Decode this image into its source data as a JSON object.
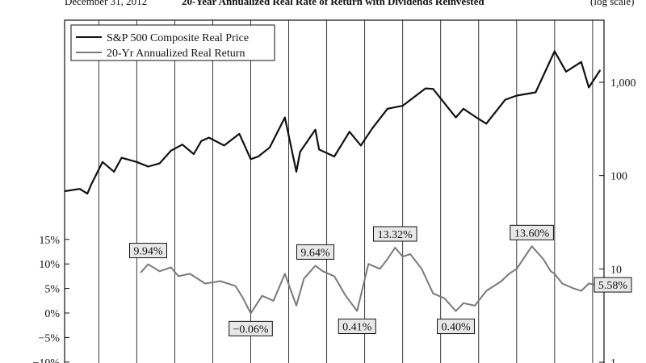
{
  "header": {
    "date": "December 31, 2012",
    "title": "20-Year Annualized Real Rate of Return with Dividends Reinvested",
    "scale_note": "(log scale)"
  },
  "chart_data": {
    "type": "line",
    "x_range": [
      1871,
      2013
    ],
    "grid": "vertical",
    "legend_position": "top-left",
    "legend": [
      {
        "label": "S&P 500 Composite Real Price",
        "color": "#111111"
      },
      {
        "label": "20-Yr Annualized Real Return",
        "color": "#7a7a7a"
      }
    ],
    "right_axis": {
      "scale": "log",
      "ticks": [
        {
          "value": 1000,
          "label": "1,000"
        },
        {
          "value": 100,
          "label": "100"
        },
        {
          "value": 10,
          "label": "10"
        },
        {
          "value": 1,
          "label": "1"
        }
      ],
      "range": [
        1,
        3000
      ]
    },
    "left_axis": {
      "ticks": [
        {
          "value": 15,
          "label": "15%"
        },
        {
          "value": 10,
          "label": "10%"
        },
        {
          "value": 5,
          "label": "5%"
        },
        {
          "value": 0,
          "label": "0%"
        },
        {
          "value": -5,
          "label": "−5%"
        },
        {
          "value": -10,
          "label": "−10%"
        }
      ]
    },
    "series": [
      {
        "name": "S&P 500 Composite Real Price",
        "color": "#111111",
        "axis": "right",
        "x": [
          1871,
          1875,
          1877,
          1878,
          1881,
          1884,
          1886,
          1890,
          1893,
          1896,
          1899,
          1902,
          1905,
          1907,
          1909,
          1913,
          1917,
          1920,
          1922,
          1925,
          1929,
          1932,
          1933,
          1937,
          1938,
          1942,
          1946,
          1949,
          1952,
          1956,
          1960,
          1966,
          1968,
          1974,
          1976,
          1979,
          1982,
          1987,
          1990,
          1995,
          2000,
          2003,
          2007,
          2009,
          2012
        ],
        "y": [
          68,
          72,
          64,
          80,
          140,
          110,
          155,
          140,
          125,
          135,
          185,
          215,
          170,
          235,
          255,
          210,
          280,
          150,
          160,
          200,
          420,
          110,
          180,
          310,
          190,
          160,
          295,
          210,
          320,
          520,
          560,
          860,
          850,
          420,
          520,
          430,
          360,
          650,
          720,
          780,
          2150,
          1300,
          1650,
          880,
          1350
        ]
      },
      {
        "name": "20-Yr Annualized Real Return",
        "color": "#7a7a7a",
        "axis": "left",
        "x": [
          1891,
          1893,
          1896,
          1899,
          1901,
          1904,
          1908,
          1912,
          1916,
          1918,
          1920,
          1923,
          1926,
          1929,
          1932,
          1934,
          1937,
          1939,
          1942,
          1945,
          1948,
          1951,
          1954,
          1956,
          1958,
          1960,
          1962,
          1965,
          1968,
          1971,
          1974,
          1976,
          1979,
          1982,
          1986,
          1988,
          1990,
          1994,
          1997,
          1999,
          2000,
          2002,
          2005,
          2007,
          2009,
          2012
        ],
        "y": [
          8.2,
          9.94,
          8.5,
          9.3,
          7.5,
          8.0,
          6.0,
          6.5,
          5.5,
          3.0,
          -0.06,
          3.5,
          2.5,
          8.0,
          1.5,
          7.0,
          9.64,
          8.5,
          7.5,
          3.5,
          0.41,
          10.0,
          9.0,
          11.0,
          13.32,
          11.5,
          12.0,
          9.0,
          4.0,
          3.0,
          0.4,
          2.0,
          1.5,
          4.5,
          6.5,
          8.0,
          9.0,
          13.6,
          11.0,
          8.5,
          8.0,
          6.0,
          5.0,
          4.5,
          6.0,
          5.58
        ]
      }
    ],
    "annotations": [
      {
        "x": 1893,
        "y": 9.94,
        "label": "9.94%",
        "placement": "above"
      },
      {
        "x": 1920,
        "y": -0.06,
        "label": "−0.06%",
        "placement": "below"
      },
      {
        "x": 1937,
        "y": 9.64,
        "label": "9.64%",
        "placement": "above"
      },
      {
        "x": 1948,
        "y": 0.41,
        "label": "0.41%",
        "placement": "below"
      },
      {
        "x": 1958,
        "y": 13.32,
        "label": "13.32%",
        "placement": "above"
      },
      {
        "x": 1974,
        "y": 0.4,
        "label": "0.40%",
        "placement": "below"
      },
      {
        "x": 1994,
        "y": 13.6,
        "label": "13.60%",
        "placement": "above"
      },
      {
        "x": 2012,
        "y": 5.58,
        "label": "5.58%",
        "placement": "right"
      }
    ]
  }
}
